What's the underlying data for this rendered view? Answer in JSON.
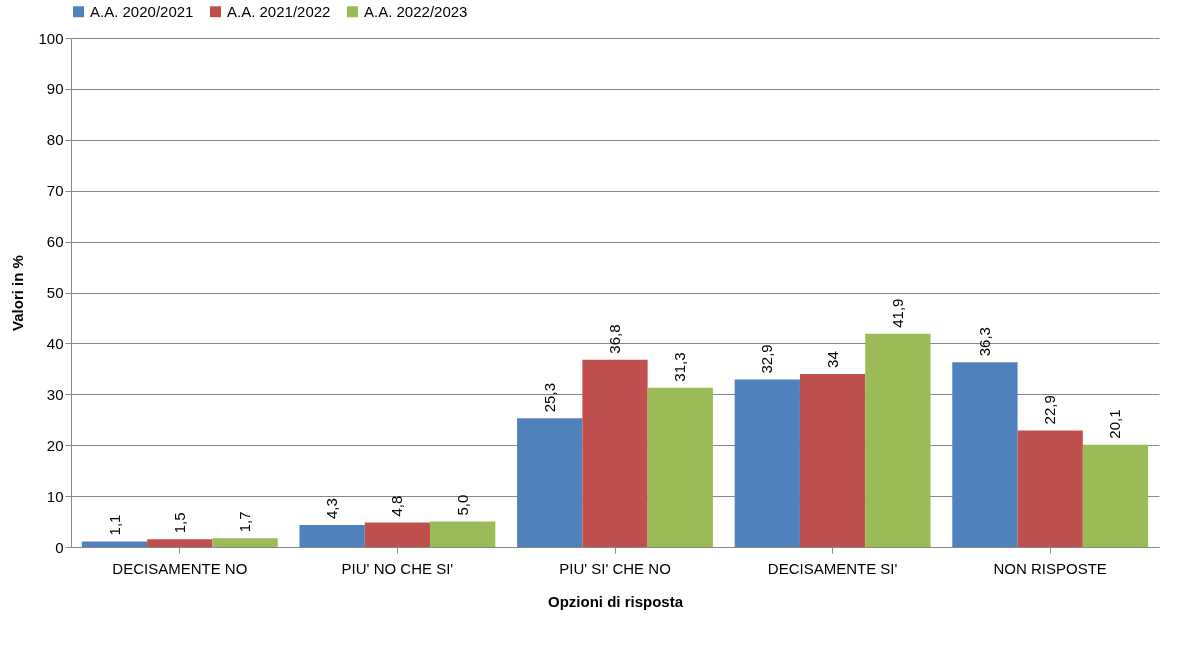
{
  "chart_data": {
    "type": "bar",
    "xlabel": "Opzioni di risposta",
    "ylabel": "Valori in %",
    "categories": [
      "DECISAMENTE NO",
      "PIU' NO CHE SI'",
      "PIU' SI' CHE NO",
      "DECISAMENTE SI'",
      "NON RISPOSTE"
    ],
    "series": [
      {
        "name": "A.A. 2020/2021",
        "color": "#4f81bd",
        "values": [
          1.1,
          4.3,
          25.3,
          32.9,
          36.3
        ],
        "value_labels": [
          "1,1",
          "4,3",
          "25,3",
          "32,9",
          "36,3"
        ]
      },
      {
        "name": "A.A. 2021/2022",
        "color": "#c0504d",
        "values": [
          1.5,
          4.8,
          36.8,
          34,
          22.9
        ],
        "value_labels": [
          "1,5",
          "4,8",
          "36,8",
          "34",
          "22,9"
        ]
      },
      {
        "name": "A.A. 2022/2023",
        "color": "#9bbb59",
        "values": [
          1.7,
          5.0,
          31.3,
          41.9,
          20.1
        ],
        "value_labels": [
          "1,7",
          "5,0",
          "31,3",
          "41,9",
          "20,1"
        ]
      }
    ],
    "ylim": [
      0,
      100
    ],
    "yticks": [
      0,
      10,
      20,
      30,
      40,
      50,
      60,
      70,
      80,
      90,
      100
    ],
    "grid": "y",
    "legend": "top"
  }
}
